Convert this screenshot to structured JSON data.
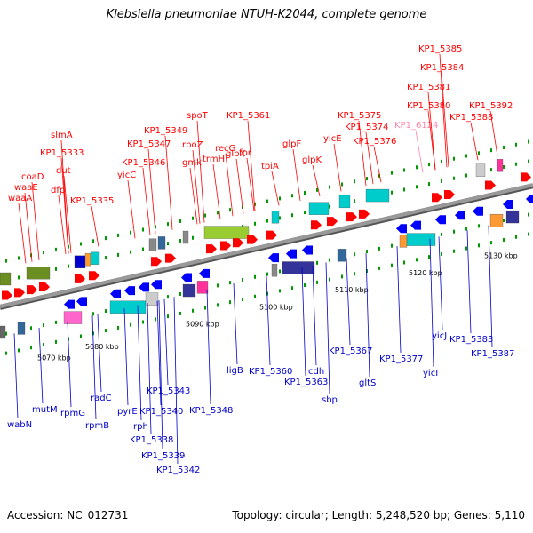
{
  "title": "Klebsiella pneumoniae NTUH-K2044, complete genome",
  "footer": {
    "accession": "Accession: NC_012731",
    "summary": "Topology: circular; Length: 5,248,520 bp; Genes: 5,110"
  },
  "colors": {
    "forward_label": "#ff0000",
    "reverse_label": "#0000cc",
    "pseudo_label": "#ff88aa",
    "forward_arrow": "#ff0000",
    "reverse_arrow": "#0000ff",
    "backbone": "#999999",
    "tick": "#009900"
  },
  "scale_labels": [
    {
      "text": "5070 kbp"
    },
    {
      "text": "5080 kbp"
    },
    {
      "text": "5090 kbp"
    },
    {
      "text": "5100 kbp"
    },
    {
      "text": "5110 kbp"
    },
    {
      "text": "5120 kbp"
    },
    {
      "text": "5130 kbp"
    }
  ],
  "forward_genes": [
    {
      "text": "waaA"
    },
    {
      "text": "waaE"
    },
    {
      "text": "coaD"
    },
    {
      "text": "dfp"
    },
    {
      "text": "KP1_5333"
    },
    {
      "text": "dut"
    },
    {
      "text": "slmA"
    },
    {
      "text": "KP1_5335"
    },
    {
      "text": "yicC"
    },
    {
      "text": "KP1_5346"
    },
    {
      "text": "KP1_5347"
    },
    {
      "text": "KP1_5349"
    },
    {
      "text": "rpoZ"
    },
    {
      "text": "gmk"
    },
    {
      "text": "spoT"
    },
    {
      "text": "trmH"
    },
    {
      "text": "recG"
    },
    {
      "text": "glpX"
    },
    {
      "text": "fpr"
    },
    {
      "text": "KP1_5361"
    },
    {
      "text": "tpiA"
    },
    {
      "text": "glpF"
    },
    {
      "text": "glpK"
    },
    {
      "text": "yicE"
    },
    {
      "text": "KP1_5374"
    },
    {
      "text": "KP1_5375"
    },
    {
      "text": "KP1_5376"
    },
    {
      "text": "KP1_6124"
    },
    {
      "text": "KP1_5380"
    },
    {
      "text": "KP1_5381"
    },
    {
      "text": "KP1_5384"
    },
    {
      "text": "KP1_5385"
    },
    {
      "text": "KP1_5388"
    },
    {
      "text": "KP1_5392"
    }
  ],
  "reverse_genes": [
    {
      "text": "wabN"
    },
    {
      "text": "mutM"
    },
    {
      "text": "rpmG"
    },
    {
      "text": "rpmB"
    },
    {
      "text": "radC"
    },
    {
      "text": "KP1_5343"
    },
    {
      "text": "pyrE"
    },
    {
      "text": "KP1_5340"
    },
    {
      "text": "rph"
    },
    {
      "text": "KP1_5338"
    },
    {
      "text": "KP1_5339"
    },
    {
      "text": "KP1_5342"
    },
    {
      "text": "KP1_5348"
    },
    {
      "text": "ligB"
    },
    {
      "text": "KP1_5360"
    },
    {
      "text": "cdh"
    },
    {
      "text": "KP1_5363"
    },
    {
      "text": "sbp"
    },
    {
      "text": "KP1_5367"
    },
    {
      "text": "gltS"
    },
    {
      "text": "KP1_5377"
    },
    {
      "text": "yicJ"
    },
    {
      "text": "yicI"
    },
    {
      "text": "KP1_5383"
    },
    {
      "text": "KP1_5387"
    }
  ]
}
